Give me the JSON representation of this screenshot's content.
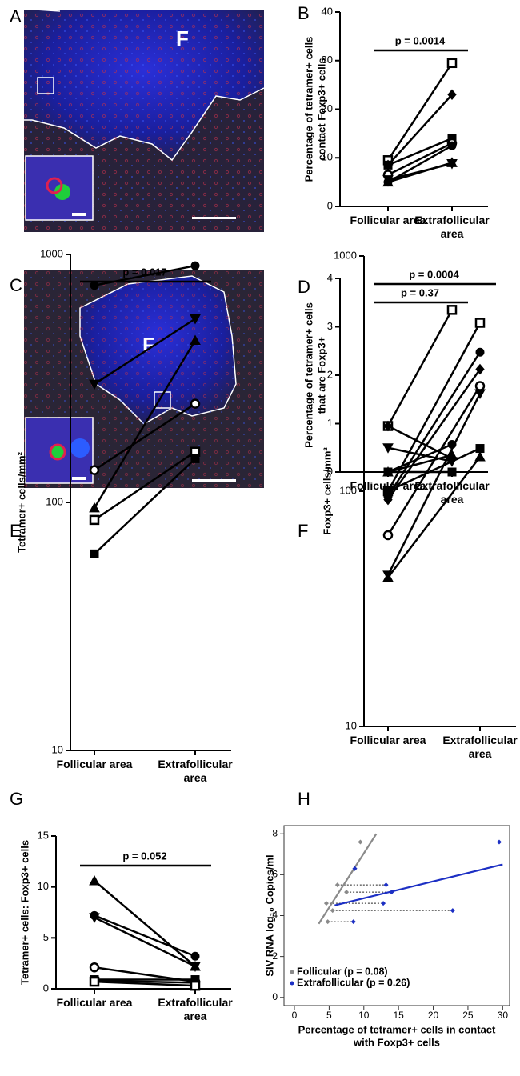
{
  "images": [
    {
      "label": "A",
      "text": "F"
    },
    {
      "label": "C",
      "text": "F"
    }
  ],
  "chart_data": [
    {
      "label": "B",
      "type": "paired",
      "title": "p = 0.0014",
      "ylabel": [
        "Percentage of tetramer+ cells",
        "contact Foxp3+ cells"
      ],
      "categories": [
        "Follicular area",
        "Extrafollicular area"
      ],
      "ylim": [
        0,
        40
      ],
      "yticks": [
        0,
        10,
        20,
        30,
        40
      ],
      "color": "#000000",
      "series": [
        {
          "marker": "square-open",
          "values": [
            9.5,
            29.5
          ]
        },
        {
          "marker": "diamond",
          "values": [
            8.5,
            23
          ]
        },
        {
          "marker": "square",
          "values": [
            8.5,
            14
          ]
        },
        {
          "marker": "circle-open",
          "values": [
            6.5,
            13
          ]
        },
        {
          "marker": "circle",
          "values": [
            5,
            12.5
          ]
        },
        {
          "marker": "triangle",
          "values": [
            5,
            9
          ]
        },
        {
          "marker": "triangle-down",
          "values": [
            5.5,
            8.8
          ]
        }
      ]
    },
    {
      "label": "D",
      "type": "paired",
      "title": "p = 0.37",
      "ylabel": [
        "Percentage of tetramer+ cells",
        "that are Foxp3+"
      ],
      "categories": [
        "Follicular area",
        "Extrafollicular area"
      ],
      "ylim": [
        0,
        4
      ],
      "yticks": [
        0,
        1,
        2,
        3,
        4
      ],
      "color": "#000000",
      "series": [
        {
          "marker": "square-open",
          "values": [
            0.95,
            3.35
          ]
        },
        {
          "marker": "diamond",
          "values": [
            0.95,
            0.28
          ]
        },
        {
          "marker": "triangle-down",
          "values": [
            0.5,
            0.22
          ]
        },
        {
          "marker": "triangle",
          "values": [
            0,
            0.35
          ]
        },
        {
          "marker": "circle",
          "values": [
            0,
            0.57
          ]
        },
        {
          "marker": "square",
          "values": [
            0,
            0
          ]
        }
      ]
    },
    {
      "label": "E",
      "type": "paired",
      "title": "p = 0.017",
      "ylabel": [
        "Tetramer+ cells/mm²"
      ],
      "categories": [
        "Follicular area",
        "Extrafollicular area"
      ],
      "ylim": [
        10,
        1000
      ],
      "yticks": [
        10,
        100,
        1000
      ],
      "log_scale": true,
      "color": "#000000",
      "series": [
        {
          "marker": "circle",
          "values": [
            750,
            900
          ]
        },
        {
          "marker": "triangle-down",
          "values": [
            300,
            550
          ]
        },
        {
          "marker": "triangle",
          "values": [
            95,
            450
          ]
        },
        {
          "marker": "circle-open",
          "values": [
            135,
            250
          ]
        },
        {
          "marker": "square-open",
          "values": [
            85,
            160
          ]
        },
        {
          "marker": "square",
          "values": [
            62,
            150
          ]
        }
      ]
    },
    {
      "label": "F",
      "type": "paired",
      "title": "p = 0.0004",
      "ylabel": [
        "Foxp3+ cells/mm²"
      ],
      "categories": [
        "Follicular area",
        "Extrafollicular area"
      ],
      "ylim": [
        10,
        1000
      ],
      "yticks": [
        10,
        100,
        1000
      ],
      "log_scale": true,
      "color": "#000000",
      "series": [
        {
          "marker": "square-open",
          "values": [
            100,
            520
          ]
        },
        {
          "marker": "circle",
          "values": [
            95,
            390
          ]
        },
        {
          "marker": "diamond",
          "values": [
            92,
            330
          ]
        },
        {
          "marker": "circle-open",
          "values": [
            65,
            280
          ]
        },
        {
          "marker": "triangle-down",
          "values": [
            44,
            260
          ]
        },
        {
          "marker": "square",
          "values": [
            100,
            152
          ]
        },
        {
          "marker": "triangle",
          "values": [
            43,
            140
          ]
        }
      ]
    },
    {
      "label": "G",
      "type": "paired",
      "title": "p = 0.052",
      "ylabel": [
        "Tetramer+ cells: Foxp3+ cells"
      ],
      "categories": [
        "Follicular area",
        "Extrafollicular area"
      ],
      "ylim": [
        0,
        15
      ],
      "yticks": [
        0,
        5,
        10,
        15
      ],
      "color": "#000000",
      "series": [
        {
          "marker": "triangle",
          "values": [
            10.6,
            2.2
          ]
        },
        {
          "marker": "circle",
          "values": [
            7.2,
            3.2
          ]
        },
        {
          "marker": "triangle-down",
          "values": [
            7.0,
            2.2
          ]
        },
        {
          "marker": "circle-open",
          "values": [
            2.1,
            0.7
          ]
        },
        {
          "marker": "square",
          "values": [
            0.9,
            0.9
          ]
        },
        {
          "marker": "diamond",
          "values": [
            0.8,
            0.6
          ]
        },
        {
          "marker": "square-open",
          "values": [
            0.7,
            0.3
          ]
        }
      ]
    },
    {
      "label": "H",
      "type": "scatter",
      "xlabel": [
        "Percentage of tetramer+ cells in contact",
        "with Foxp3+ cells"
      ],
      "ylabel": [
        "SIV RNA log₁₀ Copies/ml"
      ],
      "xlim": [
        -1.5,
        31
      ],
      "ylim": [
        -0.4,
        8.4
      ],
      "xticks": [
        0,
        5,
        10,
        15,
        20,
        25,
        30
      ],
      "yticks": [
        0,
        2,
        4,
        6,
        8
      ],
      "legend": "lower left",
      "series": [
        {
          "name": "Follicular (p = 0.08)",
          "color": "#8a8a8a",
          "x": [
            9.5,
            8.7,
            6.2,
            7.5,
            4.6,
            5.5,
            4.8
          ],
          "values": [
            7.6,
            6.3,
            5.5,
            5.15,
            4.6,
            4.25,
            3.7
          ]
        },
        {
          "name": "Extrafollicular (p = 0.26)",
          "color": "#1c2fc4",
          "x": [
            29.5,
            8.7,
            13.2,
            14,
            12.8,
            22.8,
            8.5
          ],
          "values": [
            7.6,
            6.3,
            5.5,
            5.15,
            4.6,
            4.25,
            3.7
          ]
        }
      ],
      "fits": [
        {
          "color": "#8a8a8a",
          "x": [
            3.5,
            11.8
          ],
          "values": [
            3.6,
            8.0
          ]
        },
        {
          "color": "#1c2fc4",
          "x": [
            5.8,
            30
          ],
          "values": [
            4.5,
            6.5
          ]
        }
      ]
    }
  ]
}
